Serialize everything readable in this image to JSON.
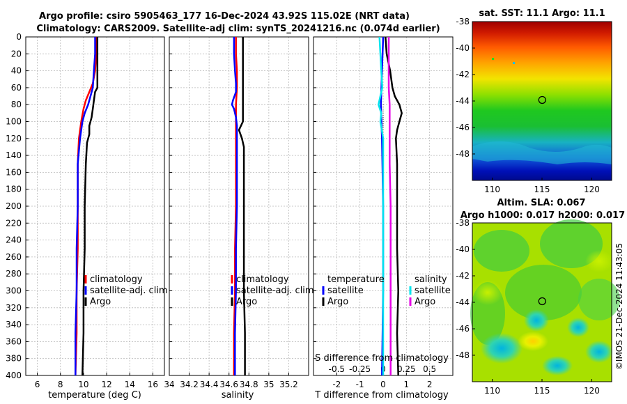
{
  "chart_data": {
    "type": "line",
    "title_line1": "Argo profile: csiro 5905463_177 16-Dec-2024 43.92S 115.02E (NRT data)",
    "title_line2": "Climatology: CARS2009. Satellite-adj clim: synTS_20241216.nc (0.074d earlier)",
    "timestamp": "©IMOS 21-Dec-2024 11:43:05",
    "depth_axis": {
      "ylim": [
        0,
        400
      ],
      "ticks": [
        0,
        20,
        40,
        60,
        80,
        100,
        120,
        140,
        160,
        180,
        200,
        220,
        240,
        260,
        280,
        300,
        320,
        340,
        360,
        380,
        400
      ],
      "tick_labels": [
        "0",
        "20",
        "40",
        "60",
        "80",
        "100",
        "120",
        "140",
        "160",
        "180",
        "200",
        "220",
        "240",
        "260",
        "280",
        "300",
        "320",
        "340",
        "360",
        "380",
        "400"
      ]
    },
    "colors": {
      "climatology": "#ff0000",
      "satellite": "#0000ff",
      "argo": "#000000",
      "sat_salinity": "#00e5ee",
      "argo_salinity": "#e600e6"
    },
    "panels": [
      {
        "id": "temperature",
        "xlabel": "temperature (deg C)",
        "xlim": [
          5,
          17
        ],
        "xticks": [
          6,
          8,
          10,
          12,
          14,
          16
        ],
        "xtick_labels": [
          "6",
          "8",
          "10",
          "12",
          "14",
          "16"
        ],
        "legend": [
          "climatology",
          "satellite-adj. clim",
          "Argo"
        ],
        "series": [
          {
            "name": "climatology",
            "color": "#ff0000",
            "depth": [
              0,
              20,
              40,
              55,
              65,
              75,
              85,
              100,
              120,
              150,
              200,
              250,
              300,
              350,
              400
            ],
            "values": [
              11.1,
              11.1,
              11.0,
              10.8,
              10.5,
              10.2,
              10.0,
              9.8,
              9.6,
              9.5,
              9.5,
              9.5,
              9.4,
              9.4,
              9.3
            ]
          },
          {
            "name": "satellite-adj. clim",
            "color": "#0000ff",
            "depth": [
              0,
              20,
              40,
              60,
              70,
              80,
              90,
              100,
              120,
              150,
              200,
              250,
              300,
              350,
              400
            ],
            "values": [
              11.0,
              11.0,
              10.9,
              10.8,
              10.6,
              10.4,
              10.1,
              9.9,
              9.7,
              9.5,
              9.5,
              9.4,
              9.4,
              9.3,
              9.3
            ]
          },
          {
            "name": "Argo",
            "color": "#000000",
            "depth": [
              0,
              20,
              40,
              60,
              65,
              75,
              85,
              95,
              105,
              115,
              125,
              150,
              200,
              250,
              300,
              350,
              400
            ],
            "values": [
              11.2,
              11.2,
              11.2,
              11.2,
              11.0,
              10.9,
              10.8,
              10.7,
              10.5,
              10.5,
              10.3,
              10.2,
              10.1,
              10.1,
              10.0,
              10.0,
              9.9
            ]
          }
        ]
      },
      {
        "id": "salinity",
        "xlabel": "salinity",
        "xlim": [
          34,
          35.4
        ],
        "xticks": [
          34,
          34.2,
          34.4,
          34.6,
          34.8,
          35,
          35.2
        ],
        "xtick_labels": [
          "34",
          "34.2",
          "34.4",
          "34.6",
          "34.8",
          "35",
          "35.2"
        ],
        "legend": [
          "climatology",
          "satellite-adj. clim",
          "Argo"
        ],
        "series": [
          {
            "name": "climatology",
            "color": "#ff0000",
            "depth": [
              0,
              20,
              40,
              60,
              80,
              100,
              150,
              200,
              250,
              300,
              350,
              400
            ],
            "values": [
              34.67,
              34.67,
              34.68,
              34.68,
              34.67,
              34.67,
              34.67,
              34.67,
              34.66,
              34.66,
              34.65,
              34.65
            ]
          },
          {
            "name": "satellite-adj. clim",
            "color": "#0000ff",
            "depth": [
              0,
              20,
              40,
              55,
              65,
              75,
              80,
              85,
              95,
              105,
              120,
              150,
              200,
              250,
              300,
              350,
              400
            ],
            "values": [
              34.65,
              34.65,
              34.66,
              34.67,
              34.67,
              34.64,
              34.63,
              34.65,
              34.67,
              34.68,
              34.68,
              34.68,
              34.68,
              34.67,
              34.67,
              34.66,
              34.66
            ]
          },
          {
            "name": "Argo",
            "color": "#000000",
            "depth": [
              0,
              20,
              40,
              60,
              80,
              100,
              110,
              120,
              130,
              150,
              200,
              250,
              300,
              350,
              400
            ],
            "values": [
              34.74,
              34.74,
              34.74,
              34.74,
              34.74,
              34.74,
              34.7,
              34.73,
              34.75,
              34.75,
              34.75,
              34.75,
              34.75,
              34.76,
              34.76
            ]
          }
        ]
      },
      {
        "id": "difference",
        "xlabel": "T difference from climatology",
        "xlabel_top": "S difference from climatology",
        "xlim": [
          -3,
          3
        ],
        "xticks": [
          -2,
          -1,
          0,
          1,
          2
        ],
        "xtick_labels": [
          "-2",
          "-1",
          "0",
          "1",
          "2"
        ],
        "top_ticks": [
          -0.5,
          -0.25,
          0,
          0.25,
          0.5
        ],
        "top_tick_labels": [
          "-0.5",
          "-0.25",
          "0",
          "0.25",
          "0.5"
        ],
        "legend_temperature": {
          "title": "temperature",
          "items": [
            "satellite",
            "Argo"
          ]
        },
        "legend_salinity": {
          "title": "salinity",
          "items": [
            "satellite",
            "Argo"
          ]
        },
        "series": [
          {
            "name": "T satellite",
            "color": "#0000ff",
            "depth": [
              0,
              40,
              80,
              120,
              200,
              300,
              400
            ],
            "values": [
              0.0,
              -0.05,
              -0.1,
              -0.05,
              0.0,
              0.0,
              -0.05
            ]
          },
          {
            "name": "T Argo",
            "color": "#000000",
            "depth": [
              0,
              20,
              40,
              60,
              70,
              80,
              90,
              100,
              110,
              120,
              150,
              200,
              250,
              300,
              350,
              400
            ],
            "values": [
              0.1,
              0.15,
              0.3,
              0.4,
              0.5,
              0.7,
              0.8,
              0.7,
              0.6,
              0.55,
              0.6,
              0.6,
              0.6,
              0.65,
              0.6,
              0.65
            ]
          },
          {
            "name": "S satellite",
            "color": "#00e5ee",
            "depth": [
              0,
              20,
              40,
              60,
              80,
              90,
              100,
              120,
              150,
              200,
              300,
              400
            ],
            "values": [
              -0.04,
              -0.03,
              -0.02,
              -0.01,
              -0.05,
              -0.02,
              -0.03,
              0.0,
              0.0,
              0.0,
              0.0,
              0.0
            ]
          },
          {
            "name": "S Argo",
            "color": "#e600e6",
            "depth": [
              0,
              20,
              40,
              60,
              80,
              100,
              150,
              200,
              300,
              400
            ],
            "values": [
              0.06,
              0.06,
              0.06,
              0.06,
              0.07,
              0.07,
              0.07,
              0.08,
              0.08,
              0.08
            ]
          }
        ]
      }
    ],
    "maps": [
      {
        "id": "sst",
        "title_line1": "sat. SST: 11.1 Argo: 11.1",
        "title_line2": "",
        "xlim": [
          108,
          122
        ],
        "ylim": [
          -50,
          -38
        ],
        "xticks": [
          110,
          115,
          120
        ],
        "xtick_labels": [
          "110",
          "115",
          "120"
        ],
        "yticks": [
          -38,
          -40,
          -42,
          -44,
          -46,
          -48
        ],
        "ytick_labels": [
          "-38",
          "-40",
          "-42",
          "-44",
          "-46",
          "-48"
        ],
        "marker": {
          "lon": 115.02,
          "lat": -43.92
        }
      },
      {
        "id": "sla",
        "title_line1": "Altim. SLA: 0.067",
        "title_line2": "Argo h1000: 0.017 h2000: 0.017",
        "xlim": [
          108,
          122
        ],
        "ylim": [
          -50,
          -38
        ],
        "xticks": [
          110,
          115,
          120
        ],
        "xtick_labels": [
          "110",
          "115",
          "120"
        ],
        "yticks": [
          -38,
          -40,
          -42,
          -44,
          -46,
          -48
        ],
        "ytick_labels": [
          "-38",
          "-40",
          "-42",
          "-44",
          "-46",
          "-48"
        ],
        "marker": {
          "lon": 115.02,
          "lat": -43.92
        }
      }
    ]
  }
}
